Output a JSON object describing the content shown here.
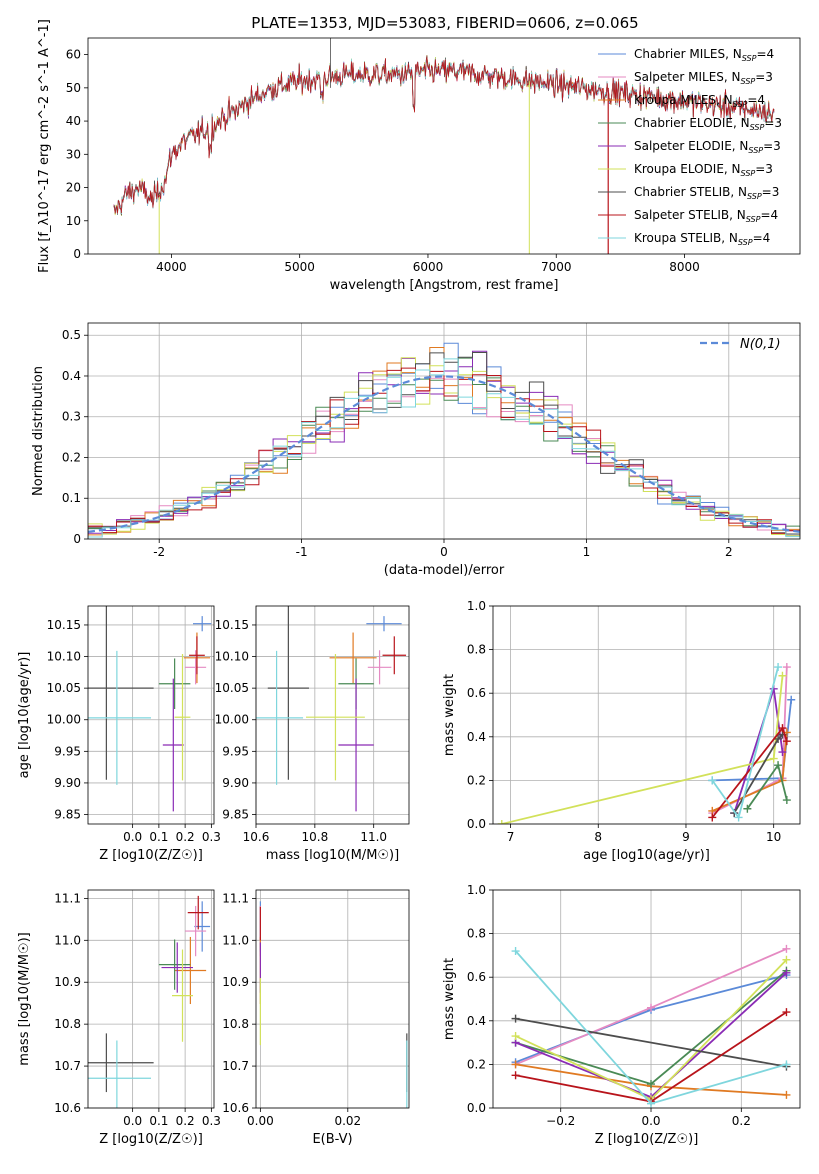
{
  "title": "PLATE=1353, MJD=53083, FIBERID=0606, z=0.065",
  "colors": {
    "chab_miles": "#5b8ad8",
    "salp_miles": "#e58ac2",
    "krou_miles": "#e07a22",
    "chab_elodie": "#4a8a55",
    "salp_elodie": "#8a2bb5",
    "krou_elodie": "#d2e15a",
    "chab_stelib": "#4d4d4d",
    "salp_stelib": "#b8141b",
    "krou_stelib": "#7fd6dd"
  },
  "chart_data": [
    {
      "id": "spectrum",
      "type": "line",
      "xlabel": "wavelength [Angstrom, rest frame]",
      "ylabel": "Flux [f_λ10^-17 erg cm^-2 s^-1 A^-1]",
      "xlim": [
        3350,
        8900
      ],
      "ylim": [
        0,
        65
      ],
      "xticks": [
        4000,
        5000,
        6000,
        7000,
        8000
      ],
      "yticks": [
        0,
        10,
        20,
        30,
        40,
        50,
        60
      ],
      "legend_position": "right",
      "legend": [
        {
          "label": "Chabrier MILES, N",
          "sub": "SSP",
          "suffix": "=4",
          "color": "chab_miles"
        },
        {
          "label": "Salpeter MILES, N",
          "sub": "SSP",
          "suffix": "=3",
          "color": "salp_miles"
        },
        {
          "label": "Kroupa MILES, N",
          "sub": "SSP",
          "suffix": "=4",
          "color": "krou_miles"
        },
        {
          "label": "Chabrier ELODIE, N",
          "sub": "SSP",
          "suffix": "=3",
          "color": "chab_elodie"
        },
        {
          "label": "Salpeter ELODIE, N",
          "sub": "SSP",
          "suffix": "=3",
          "color": "salp_elodie"
        },
        {
          "label": "Kroupa ELODIE, N",
          "sub": "SSP",
          "suffix": "=3",
          "color": "krou_elodie"
        },
        {
          "label": "Chabrier STELIB, N",
          "sub": "SSP",
          "suffix": "=3",
          "color": "chab_stelib"
        },
        {
          "label": "Salpeter STELIB, N",
          "sub": "SSP",
          "suffix": "=4",
          "color": "salp_stelib"
        },
        {
          "label": "Kroupa STELIB, N",
          "sub": "SSP",
          "suffix": "=4",
          "color": "krou_stelib"
        }
      ],
      "continuum": [
        [
          3550,
          12
        ],
        [
          3650,
          18
        ],
        [
          3750,
          20
        ],
        [
          3850,
          16
        ],
        [
          3950,
          22
        ],
        [
          4000,
          30
        ],
        [
          4100,
          34
        ],
        [
          4200,
          36
        ],
        [
          4300,
          38
        ],
        [
          4400,
          41
        ],
        [
          4500,
          43
        ],
        [
          4600,
          46
        ],
        [
          4700,
          48
        ],
        [
          4800,
          50
        ],
        [
          4900,
          51
        ],
        [
          5000,
          52
        ],
        [
          5200,
          53
        ],
        [
          5400,
          54
        ],
        [
          5600,
          54
        ],
        [
          5800,
          54
        ],
        [
          6000,
          55
        ],
        [
          6200,
          55
        ],
        [
          6400,
          54
        ],
        [
          6600,
          53
        ],
        [
          6800,
          52
        ],
        [
          7000,
          51
        ],
        [
          7200,
          50
        ],
        [
          7400,
          49
        ],
        [
          7600,
          48
        ],
        [
          7800,
          47
        ],
        [
          8000,
          46
        ],
        [
          8200,
          45
        ],
        [
          8400,
          44
        ],
        [
          8600,
          43
        ],
        [
          8700,
          42
        ]
      ]
    },
    {
      "id": "residuals",
      "type": "histogram",
      "xlabel": "(data-model)/error",
      "ylabel": "Normed distribution",
      "xlim": [
        -2.5,
        2.5
      ],
      "ylim": [
        0,
        0.53
      ],
      "xticks": [
        -2,
        -1,
        0,
        1,
        2
      ],
      "yticks": [
        0,
        0.1,
        0.2,
        0.3,
        0.4,
        0.5
      ],
      "bin_width": 0.1,
      "legend_label": "N(0,1)",
      "legend_position": "top-right",
      "grid": true
    },
    {
      "id": "age_vs_Z",
      "type": "errorbar",
      "xlabel": "Z [log10(Z/Z☉)]",
      "ylabel": "age [log10(age/yr)]",
      "xlim": [
        -0.17,
        0.31
      ],
      "ylim": [
        9.835,
        10.18
      ],
      "xticks": [
        0,
        0.1,
        0.2,
        0.3
      ],
      "xticklabels": [
        "0.0",
        "0.1",
        "0.2",
        "0.3"
      ],
      "yticks": [
        9.85,
        9.9,
        9.95,
        10.0,
        10.05,
        10.1,
        10.15
      ],
      "yticklabels": [
        "9.85",
        "9.90",
        "9.95",
        "10.00",
        "10.05",
        "10.10",
        "10.15"
      ],
      "points": [
        {
          "color": "chab_miles",
          "x": 0.265,
          "xerr": 0.035,
          "y": 10.152,
          "yerr": 0.012
        },
        {
          "color": "salp_miles",
          "x": 0.24,
          "xerr": 0.04,
          "y": 10.083,
          "yerr": 0.027
        },
        {
          "color": "krou_miles",
          "x": 0.245,
          "xerr": 0.05,
          "y": 10.098,
          "yerr": 0.04
        },
        {
          "color": "chab_elodie",
          "x": 0.16,
          "xerr": 0.06,
          "y": 10.057,
          "yerr": 0.04
        },
        {
          "color": "salp_elodie",
          "x": 0.155,
          "xerr": 0.04,
          "y": 9.96,
          "yerr": 0.105
        },
        {
          "color": "krou_elodie",
          "x": 0.19,
          "xerr": 0.03,
          "y": 10.004,
          "yerr": 0.1
        },
        {
          "color": "chab_stelib",
          "x": -0.1,
          "xerr": 0.18,
          "y": 10.05,
          "yerr": 0.145
        },
        {
          "color": "salp_stelib",
          "x": 0.245,
          "xerr": 0.03,
          "y": 10.102,
          "yerr": 0.03
        },
        {
          "color": "krou_stelib",
          "x": -0.06,
          "xerr": 0.13,
          "y": 10.003,
          "yerr": 0.106
        }
      ]
    },
    {
      "id": "age_vs_mass",
      "type": "errorbar",
      "xlabel": "mass [log10(M/M☉)]",
      "xlim": [
        10.6,
        11.12
      ],
      "ylim": [
        9.835,
        10.18
      ],
      "xticks": [
        10.6,
        10.8,
        11.0
      ],
      "xticklabels": [
        "10.6",
        "10.8",
        "11.0"
      ],
      "yticks": [
        9.85,
        9.9,
        9.95,
        10.0,
        10.05,
        10.1,
        10.15
      ],
      "yticklabels": [
        "9.85",
        "9.90",
        "9.95",
        "10.00",
        "10.05",
        "10.10",
        "10.15"
      ],
      "points": [
        {
          "color": "chab_miles",
          "x": 11.035,
          "xerr": 0.06,
          "y": 10.152,
          "yerr": 0.012
        },
        {
          "color": "salp_miles",
          "x": 11.02,
          "xerr": 0.04,
          "y": 10.083,
          "yerr": 0.027
        },
        {
          "color": "krou_miles",
          "x": 10.93,
          "xerr": 0.08,
          "y": 10.098,
          "yerr": 0.04
        },
        {
          "color": "chab_elodie",
          "x": 10.94,
          "xerr": 0.06,
          "y": 10.057,
          "yerr": 0.04
        },
        {
          "color": "salp_elodie",
          "x": 10.94,
          "xerr": 0.06,
          "y": 9.96,
          "yerr": 0.105
        },
        {
          "color": "krou_elodie",
          "x": 10.87,
          "xerr": 0.1,
          "y": 10.004,
          "yerr": 0.1
        },
        {
          "color": "chab_stelib",
          "x": 10.71,
          "xerr": 0.07,
          "y": 10.05,
          "yerr": 0.145
        },
        {
          "color": "salp_stelib",
          "x": 11.07,
          "xerr": 0.04,
          "y": 10.102,
          "yerr": 0.03
        },
        {
          "color": "krou_stelib",
          "x": 10.67,
          "xerr": 0.09,
          "y": 10.003,
          "yerr": 0.106
        }
      ]
    },
    {
      "id": "weight_vs_age",
      "type": "line",
      "xlabel": "age [log10(age/yr)]",
      "ylabel": "mass weight",
      "xlim": [
        6.8,
        10.3
      ],
      "ylim": [
        0,
        1.0
      ],
      "xticks": [
        7,
        8,
        9,
        10
      ],
      "yticks": [
        0,
        0.2,
        0.4,
        0.6,
        0.8,
        1.0
      ],
      "yticklabels": [
        "0.0",
        "0.2",
        "0.4",
        "0.6",
        "0.8",
        "1.0"
      ],
      "series": [
        {
          "color": "chab_miles",
          "x": [
            9.3,
            10.1,
            10.2
          ],
          "y": [
            0.2,
            0.21,
            0.57
          ]
        },
        {
          "color": "salp_miles",
          "x": [
            9.3,
            10.1,
            10.15
          ],
          "y": [
            0.05,
            0.21,
            0.72
          ]
        },
        {
          "color": "krou_miles",
          "x": [
            9.3,
            10.1,
            10.15
          ],
          "y": [
            0.06,
            0.2,
            0.42
          ]
        },
        {
          "color": "chab_elodie",
          "x": [
            9.7,
            10.05,
            10.15
          ],
          "y": [
            0.07,
            0.27,
            0.11
          ]
        },
        {
          "color": "salp_elodie",
          "x": [
            9.55,
            10.0,
            10.1
          ],
          "y": [
            0.05,
            0.62,
            0.33
          ]
        },
        {
          "color": "krou_elodie",
          "x": [
            6.9,
            10.0,
            10.1
          ],
          "y": [
            0.0,
            0.3,
            0.68
          ]
        },
        {
          "color": "chab_stelib",
          "x": [
            9.55,
            10.05,
            10.1
          ],
          "y": [
            0.05,
            0.39,
            0.41
          ]
        },
        {
          "color": "salp_stelib",
          "x": [
            9.3,
            10.1,
            10.15
          ],
          "y": [
            0.03,
            0.44,
            0.38
          ]
        },
        {
          "color": "krou_stelib",
          "x": [
            9.3,
            9.6,
            10.05
          ],
          "y": [
            0.2,
            0.03,
            0.72
          ]
        }
      ]
    },
    {
      "id": "mass_vs_Z",
      "type": "errorbar",
      "xlabel": "Z [log10(Z/Z☉)]",
      "ylabel": "mass [log10(M/M☉)]",
      "xlim": [
        -0.17,
        0.31
      ],
      "ylim": [
        10.6,
        11.12
      ],
      "xticks": [
        0,
        0.1,
        0.2,
        0.3
      ],
      "xticklabels": [
        "0.0",
        "0.1",
        "0.2",
        "0.3"
      ],
      "yticks": [
        10.6,
        10.7,
        10.8,
        10.9,
        11.0,
        11.1
      ],
      "yticklabels": [
        "10.6",
        "10.7",
        "10.8",
        "10.9",
        "11.0",
        "11.1"
      ],
      "points": [
        {
          "color": "chab_miles",
          "x": 0.265,
          "xerr": 0.03,
          "y": 11.033,
          "yerr": 0.06
        },
        {
          "color": "salp_miles",
          "x": 0.24,
          "xerr": 0.04,
          "y": 11.022,
          "yerr": 0.06
        },
        {
          "color": "krou_miles",
          "x": 0.22,
          "xerr": 0.06,
          "y": 10.928,
          "yerr": 0.08
        },
        {
          "color": "chab_elodie",
          "x": 0.16,
          "xerr": 0.06,
          "y": 10.942,
          "yerr": 0.06
        },
        {
          "color": "salp_elodie",
          "x": 0.17,
          "xerr": 0.06,
          "y": 10.935,
          "yerr": 0.06
        },
        {
          "color": "krou_elodie",
          "x": 0.19,
          "xerr": 0.04,
          "y": 10.868,
          "yerr": 0.11
        },
        {
          "color": "chab_stelib",
          "x": -0.1,
          "xerr": 0.18,
          "y": 10.708,
          "yerr": 0.07
        },
        {
          "color": "salp_stelib",
          "x": 0.25,
          "xerr": 0.04,
          "y": 11.066,
          "yerr": 0.04
        },
        {
          "color": "krou_stelib",
          "x": -0.06,
          "xerr": 0.13,
          "y": 10.671,
          "yerr": 0.09
        }
      ]
    },
    {
      "id": "mass_vs_ebv",
      "type": "errorbar",
      "xlabel": "E(B-V)",
      "xlim": [
        -0.001,
        0.034
      ],
      "ylim": [
        10.6,
        11.12
      ],
      "xticks": [
        0,
        0.02
      ],
      "xticklabels": [
        "0.00",
        "0.02"
      ],
      "yticks": [
        10.6,
        10.7,
        10.8,
        10.9,
        11.0,
        11.1
      ],
      "yticklabels": [
        "10.6",
        "10.7",
        "10.8",
        "10.9",
        "11.0",
        "11.1"
      ],
      "points": [
        {
          "color": "chab_miles",
          "x": 0.0,
          "xerr": 0.0,
          "y": 11.033,
          "yerr": 0.06
        },
        {
          "color": "salp_miles",
          "x": 0.0,
          "xerr": 0.0,
          "y": 11.022,
          "yerr": 0.06
        },
        {
          "color": "krou_miles",
          "x": 0.0,
          "xerr": 0.0,
          "y": 10.928,
          "yerr": 0.08
        },
        {
          "color": "salp_elodie",
          "x": 0.0,
          "xerr": 0.0,
          "y": 10.935,
          "yerr": 0.06
        },
        {
          "color": "krou_elodie",
          "x": 0.0,
          "xerr": 0.0,
          "y": 10.83,
          "yerr": 0.08
        },
        {
          "color": "salp_stelib",
          "x": 0.0,
          "xerr": 0.0,
          "y": 11.04,
          "yerr": 0.04
        },
        {
          "color": "chab_stelib",
          "x": 0.0335,
          "xerr": 0.0,
          "y": 10.708,
          "yerr": 0.07
        },
        {
          "color": "krou_stelib",
          "x": 0.0335,
          "xerr": 0.0,
          "y": 10.671,
          "yerr": 0.09
        }
      ]
    },
    {
      "id": "weight_vs_Z",
      "type": "line",
      "xlabel": "Z [log10(Z/Z☉)]",
      "ylabel": "mass weight",
      "xlim": [
        -0.35,
        0.33
      ],
      "ylim": [
        0,
        1.0
      ],
      "xticks": [
        -0.2,
        0.0,
        0.2
      ],
      "xticklabels": [
        "−0.2",
        "0.0",
        "0.2"
      ],
      "yticks": [
        0,
        0.2,
        0.4,
        0.6,
        0.8,
        1.0
      ],
      "yticklabels": [
        "0.0",
        "0.2",
        "0.4",
        "0.6",
        "0.8",
        "1.0"
      ],
      "series": [
        {
          "color": "chab_miles",
          "x": [
            -0.3,
            0.0,
            0.3
          ],
          "y": [
            0.21,
            0.45,
            0.61
          ]
        },
        {
          "color": "salp_miles",
          "x": [
            -0.3,
            0.0,
            0.3
          ],
          "y": [
            0.2,
            0.46,
            0.73
          ]
        },
        {
          "color": "krou_miles",
          "x": [
            -0.3,
            0.0,
            0.3
          ],
          "y": [
            0.2,
            0.1,
            0.06
          ]
        },
        {
          "color": "chab_elodie",
          "x": [
            -0.3,
            0.0,
            0.3
          ],
          "y": [
            0.3,
            0.11,
            0.63
          ]
        },
        {
          "color": "salp_elodie",
          "x": [
            -0.3,
            0.0,
            0.3
          ],
          "y": [
            0.3,
            0.05,
            0.62
          ]
        },
        {
          "color": "krou_elodie",
          "x": [
            -0.3,
            0.0,
            0.3
          ],
          "y": [
            0.33,
            0.04,
            0.68
          ]
        },
        {
          "color": "chab_stelib",
          "x": [
            -0.3,
            0.3
          ],
          "y": [
            0.41,
            0.19
          ]
        },
        {
          "color": "salp_stelib",
          "x": [
            -0.3,
            0.0,
            0.3
          ],
          "y": [
            0.15,
            0.03,
            0.44
          ]
        },
        {
          "color": "krou_stelib",
          "x": [
            -0.3,
            0.0,
            0.3
          ],
          "y": [
            0.72,
            0.02,
            0.2
          ]
        }
      ]
    }
  ]
}
